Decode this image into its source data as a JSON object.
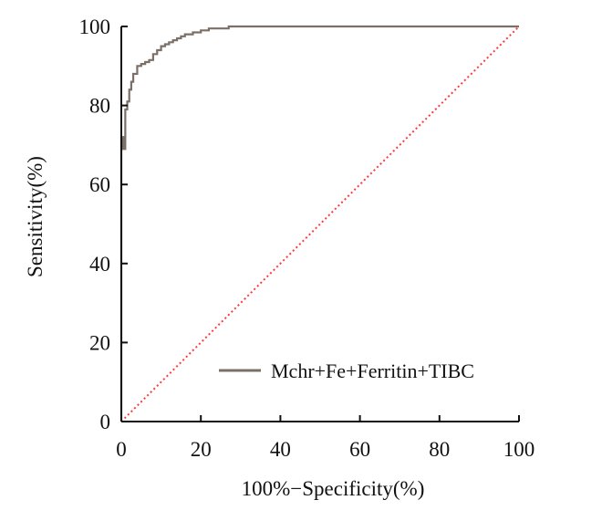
{
  "chart_data": {
    "type": "line",
    "title": "",
    "xlabel": "100%−Specificity(%)",
    "ylabel": "Sensitivity(%)",
    "xlim": [
      0,
      100
    ],
    "ylim": [
      0,
      100
    ],
    "xticks": [
      0,
      20,
      40,
      60,
      80,
      100
    ],
    "yticks": [
      0,
      20,
      40,
      60,
      80,
      100
    ],
    "grid": false,
    "legend_position": "bottom-right",
    "series": [
      {
        "name": "Mchr+Fe+Ferritin+TIBC",
        "color": "#7a7068",
        "style": "solid",
        "x": [
          0,
          0,
          0.5,
          0.5,
          1.0,
          1.0,
          1.5,
          1.5,
          2.0,
          2.0,
          2.5,
          2.5,
          3.0,
          3.0,
          4.0,
          4.0,
          5.0,
          5.0,
          6.0,
          6.0,
          7.0,
          7.0,
          8.0,
          8.0,
          9.0,
          9.0,
          10.0,
          10.0,
          11.0,
          11.0,
          12.0,
          12.0,
          13.0,
          13.0,
          14.0,
          14.0,
          15.0,
          15.0,
          16.0,
          16.0,
          18.0,
          18.0,
          20.0,
          20.0,
          22.0,
          22.0,
          27.0,
          27.0,
          40.0,
          60.0,
          80.0,
          100.0
        ],
        "y": [
          0,
          72,
          72,
          69,
          69,
          79,
          79,
          81,
          81,
          84,
          84,
          86,
          86,
          88,
          88,
          90,
          90,
          90.5,
          90.5,
          91,
          91,
          91.5,
          91.5,
          93,
          93,
          94,
          94,
          95,
          95,
          95.5,
          95.5,
          96,
          96,
          96.5,
          96.5,
          97,
          97,
          97.5,
          97.5,
          98,
          98,
          98.5,
          98.5,
          99,
          99,
          99.5,
          99.5,
          100,
          100,
          100,
          100,
          100
        ]
      },
      {
        "name": "",
        "color": "#ff3b3b",
        "style": "dotted",
        "x": [
          0,
          100
        ],
        "y": [
          0,
          100
        ]
      }
    ]
  }
}
